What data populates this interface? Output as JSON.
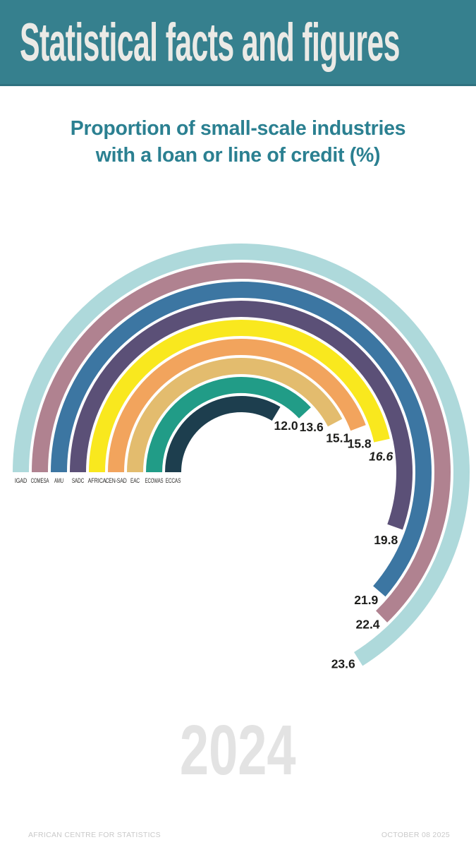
{
  "header": {
    "title": "Statistical facts and figures"
  },
  "subtitle": {
    "line1": "Proportion of small-scale industries",
    "line2": "with a loan or line of credit (%)"
  },
  "chart_data": {
    "type": "radial_bar",
    "title": "Proportion of small-scale industries with a loan or line of credit (%)",
    "unit": "%",
    "value_range_implied": [
      0,
      24
    ],
    "order": "outermost to innermost",
    "categories": [
      "IGAD",
      "COMESA",
      "AMU",
      "SADC",
      "AFRICA",
      "CEN-SAD",
      "EAC",
      "ECOWAS",
      "ECCAS"
    ],
    "values": [
      23.6,
      22.4,
      21.9,
      19.8,
      16.6,
      15.8,
      15.1,
      13.6,
      12.0
    ],
    "colors": [
      "#aed9db",
      "#b08290",
      "#3c76a2",
      "#5b5077",
      "#f9e81e",
      "#f2a45d",
      "#e3bc6e",
      "#219c87",
      "#1d3e4e"
    ],
    "emphasis_category": "AFRICA",
    "legend_position": "base of each arc, bottom-left"
  },
  "year_watermark": "2024",
  "footer": {
    "left": "AFRICAN CENTRE FOR STATISTICS",
    "right": "OCTOBER 08 2025"
  },
  "theme_colors": {
    "header_bg": "#36808e",
    "header_text": "#ebeae6",
    "title_teal": "#2b8091",
    "watermark_gray": "#e3e3e3",
    "footer_gray": "#c9c9c9"
  }
}
